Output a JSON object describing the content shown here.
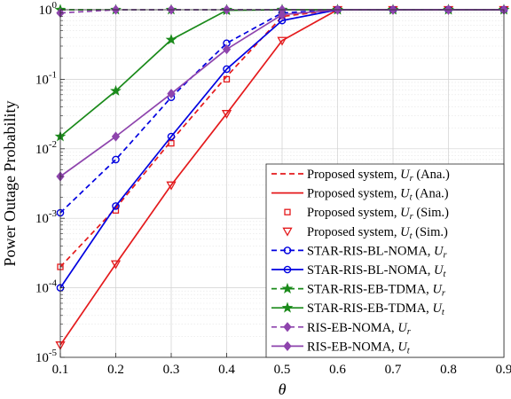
{
  "chart_data": {
    "type": "line",
    "xlabel": "θ",
    "ylabel": "Power Outage Probability",
    "y_scale": "log",
    "xlim": [
      0.1,
      0.9
    ],
    "ylim": [
      1e-05,
      1
    ],
    "grid": true,
    "legend_position": "bottom-right",
    "x_ticks": [
      "0.1",
      "0.2",
      "0.3",
      "0.4",
      "0.5",
      "0.6",
      "0.7",
      "0.8",
      "0.9"
    ],
    "y_ticks": [
      {
        "base": "10",
        "exp": "0"
      },
      {
        "base": "10",
        "exp": "-1"
      },
      {
        "base": "10",
        "exp": "-2"
      },
      {
        "base": "10",
        "exp": "-3"
      },
      {
        "base": "10",
        "exp": "-4"
      },
      {
        "base": "10",
        "exp": "-5"
      }
    ],
    "series": [
      {
        "name": "Proposed system, U_r (Ana.)",
        "label_main": "Proposed system, ",
        "label_var": "U",
        "label_sub": "r",
        "label_tail": " (Ana.)",
        "color": "#e41a1c",
        "dash": true,
        "marker": "none",
        "x": [
          0.1,
          0.2,
          0.3,
          0.4,
          0.5,
          0.6,
          0.7,
          0.8,
          0.9
        ],
        "y": [
          0.0002,
          0.0014,
          0.013,
          0.11,
          0.8,
          1,
          1,
          1,
          1
        ]
      },
      {
        "name": "Proposed system, U_t (Ana.)",
        "label_main": "Proposed system, ",
        "label_var": "U",
        "label_sub": "t",
        "label_tail": " (Ana.)",
        "color": "#e41a1c",
        "dash": false,
        "marker": "none",
        "x": [
          0.1,
          0.2,
          0.3,
          0.4,
          0.5,
          0.6,
          0.7,
          0.8,
          0.9
        ],
        "y": [
          1.5e-05,
          0.00022,
          0.003,
          0.032,
          0.36,
          1,
          1,
          1,
          1
        ]
      },
      {
        "name": "Proposed system, U_r (Sim.)",
        "label_main": "Proposed system, ",
        "label_var": "U",
        "label_sub": "r",
        "label_tail": " (Sim.)",
        "color": "#e41a1c",
        "dash": false,
        "marker": "square",
        "line": false,
        "x": [
          0.1,
          0.2,
          0.3,
          0.4,
          0.5,
          0.6,
          0.7,
          0.8,
          0.9
        ],
        "y": [
          0.0002,
          0.0013,
          0.012,
          0.1,
          0.82,
          1,
          1,
          1,
          1
        ]
      },
      {
        "name": "Proposed system, U_t (Sim.)",
        "label_main": "Proposed system, ",
        "label_var": "U",
        "label_sub": "t",
        "label_tail": " (Sim.)",
        "color": "#e41a1c",
        "dash": false,
        "marker": "triangle-down",
        "line": false,
        "x": [
          0.1,
          0.2,
          0.3,
          0.4,
          0.5,
          0.6,
          0.7,
          0.8,
          0.9
        ],
        "y": [
          1.5e-05,
          0.00022,
          0.003,
          0.032,
          0.36,
          1,
          1,
          1,
          1
        ]
      },
      {
        "name": "STAR-RIS-BL-NOMA, U_r",
        "label_main": "STAR-RIS-BL-NOMA, ",
        "label_var": "U",
        "label_sub": "r",
        "label_tail": "",
        "color": "#0000e0",
        "dash": true,
        "marker": "circle",
        "x": [
          0.1,
          0.2,
          0.3,
          0.4,
          0.5,
          0.6,
          0.7,
          0.8,
          0.9
        ],
        "y": [
          0.0012,
          0.007,
          0.055,
          0.33,
          0.9,
          1,
          1,
          1,
          1
        ]
      },
      {
        "name": "STAR-RIS-BL-NOMA, U_t",
        "label_main": "STAR-RIS-BL-NOMA, ",
        "label_var": "U",
        "label_sub": "t",
        "label_tail": "",
        "color": "#0000e0",
        "dash": false,
        "marker": "circle",
        "x": [
          0.1,
          0.2,
          0.3,
          0.4,
          0.5,
          0.6,
          0.7,
          0.8,
          0.9
        ],
        "y": [
          0.0001,
          0.0015,
          0.015,
          0.14,
          0.7,
          1,
          1,
          1,
          1
        ]
      },
      {
        "name": "STAR-RIS-EB-TDMA, U_r",
        "label_main": "STAR-RIS-EB-TDMA, ",
        "label_var": "U",
        "label_sub": "r",
        "label_tail": "",
        "color": "#1a8a1a",
        "dash": true,
        "marker": "star",
        "x": [
          0.1,
          0.2,
          0.3,
          0.4,
          0.5,
          0.6,
          0.7,
          0.8,
          0.9
        ],
        "y": [
          1,
          1,
          1,
          1,
          1,
          1,
          1,
          1,
          1
        ]
      },
      {
        "name": "STAR-RIS-EB-TDMA, U_t",
        "label_main": "STAR-RIS-EB-TDMA, ",
        "label_var": "U",
        "label_sub": "t",
        "label_tail": "",
        "color": "#1a8a1a",
        "dash": false,
        "marker": "star",
        "x": [
          0.1,
          0.2,
          0.3,
          0.4,
          0.5,
          0.6,
          0.7,
          0.8,
          0.9
        ],
        "y": [
          0.015,
          0.068,
          0.37,
          0.98,
          1,
          1,
          1,
          1,
          1
        ]
      },
      {
        "name": "RIS-EB-NOMA, U_r",
        "label_main": "RIS-EB-NOMA, ",
        "label_var": "U",
        "label_sub": "r",
        "label_tail": "",
        "color": "#8e44ad",
        "dash": true,
        "marker": "diamond",
        "x": [
          0.1,
          0.2,
          0.3,
          0.4,
          0.5,
          0.6,
          0.7,
          0.8,
          0.9
        ],
        "y": [
          0.9,
          1,
          1,
          1,
          1,
          1,
          1,
          1,
          1
        ]
      },
      {
        "name": "RIS-EB-NOMA, U_t",
        "label_main": "RIS-EB-NOMA, ",
        "label_var": "U",
        "label_sub": "t",
        "label_tail": "",
        "color": "#8e44ad",
        "dash": false,
        "marker": "diamond",
        "x": [
          0.1,
          0.2,
          0.3,
          0.4,
          0.5,
          0.6,
          0.7,
          0.8,
          0.9
        ],
        "y": [
          0.004,
          0.015,
          0.062,
          0.27,
          0.85,
          1,
          1,
          1,
          1
        ]
      }
    ]
  }
}
